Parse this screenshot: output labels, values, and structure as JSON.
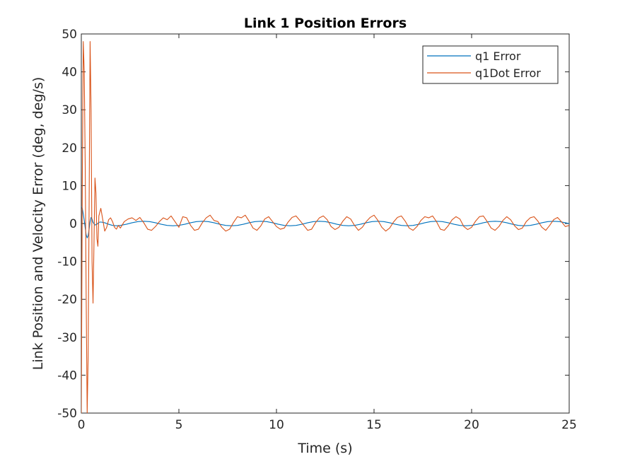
{
  "chart_data": {
    "type": "line",
    "title": "Link 1 Position Errors",
    "xlabel": "Time (s)",
    "ylabel": "Link Position and Velocity Error (deg, deg/s)",
    "xlim": [
      0,
      25
    ],
    "ylim": [
      -50,
      50
    ],
    "xticks": [
      0,
      5,
      10,
      15,
      20,
      25
    ],
    "yticks": [
      -50,
      -40,
      -30,
      -20,
      -10,
      0,
      10,
      20,
      30,
      40,
      50
    ],
    "grid": false,
    "legend_position": "top-right",
    "series": [
      {
        "name": "q1 Error",
        "color": "#0072BD",
        "x": [
          0,
          0.05,
          0.1,
          0.15,
          0.2,
          0.25,
          0.3,
          0.35,
          0.4,
          0.45,
          0.5,
          0.55,
          0.6,
          0.7,
          0.8,
          0.9,
          1.0,
          1.2,
          1.4,
          1.6,
          1.8,
          2.0,
          2.3,
          2.6,
          2.9,
          3.2,
          3.5,
          3.8,
          4.1,
          4.4,
          4.7,
          5.0,
          5.3,
          5.6,
          5.9,
          6.2,
          6.5,
          6.8,
          7.1,
          7.4,
          7.7,
          8.0,
          8.3,
          8.6,
          8.9,
          9.2,
          9.5,
          9.8,
          10.1,
          10.4,
          10.7,
          11.0,
          11.3,
          11.6,
          11.9,
          12.2,
          12.5,
          12.8,
          13.1,
          13.4,
          13.7,
          14.0,
          14.3,
          14.6,
          14.9,
          15.2,
          15.5,
          15.8,
          16.1,
          16.4,
          16.7,
          17.0,
          17.3,
          17.6,
          17.9,
          18.2,
          18.5,
          18.8,
          19.1,
          19.4,
          19.7,
          20.0,
          20.3,
          20.6,
          20.9,
          21.2,
          21.5,
          21.8,
          22.1,
          22.4,
          22.7,
          23.0,
          23.3,
          23.6,
          23.9,
          24.2,
          24.5,
          24.8,
          25.0
        ],
        "y": [
          4.5,
          4.0,
          2.5,
          0.8,
          -1.2,
          -3.0,
          -3.8,
          -3.2,
          -1.5,
          0.5,
          1.6,
          1.2,
          0.3,
          -0.4,
          -0.2,
          0.3,
          0.4,
          0.2,
          -0.2,
          -0.5,
          -0.6,
          -0.5,
          -0.2,
          0.2,
          0.5,
          0.6,
          0.5,
          0.2,
          -0.2,
          -0.5,
          -0.6,
          -0.5,
          -0.2,
          0.2,
          0.5,
          0.6,
          0.5,
          0.2,
          -0.2,
          -0.5,
          -0.6,
          -0.5,
          -0.2,
          0.2,
          0.5,
          0.6,
          0.5,
          0.2,
          -0.2,
          -0.5,
          -0.6,
          -0.5,
          -0.2,
          0.2,
          0.5,
          0.6,
          0.5,
          0.2,
          -0.2,
          -0.5,
          -0.6,
          -0.5,
          -0.2,
          0.2,
          0.5,
          0.6,
          0.5,
          0.2,
          -0.2,
          -0.5,
          -0.6,
          -0.5,
          -0.2,
          0.2,
          0.5,
          0.6,
          0.5,
          0.2,
          -0.2,
          -0.5,
          -0.6,
          -0.5,
          -0.2,
          0.2,
          0.5,
          0.6,
          0.5,
          0.2,
          -0.2,
          -0.5,
          -0.6,
          -0.5,
          -0.2,
          0.2,
          0.5,
          0.6,
          0.5,
          0.2,
          0.0
        ]
      },
      {
        "name": "q1Dot Error",
        "color": "#D95319",
        "x": [
          0,
          0.05,
          0.1,
          0.15,
          0.2,
          0.25,
          0.3,
          0.35,
          0.4,
          0.45,
          0.5,
          0.55,
          0.6,
          0.65,
          0.7,
          0.75,
          0.8,
          0.85,
          0.9,
          1.0,
          1.1,
          1.2,
          1.3,
          1.4,
          1.5,
          1.6,
          1.7,
          1.8,
          1.9,
          2.0,
          2.2,
          2.4,
          2.6,
          2.8,
          3.0,
          3.2,
          3.4,
          3.6,
          3.8,
          4.0,
          4.2,
          4.4,
          4.6,
          4.8,
          5.0,
          5.2,
          5.4,
          5.6,
          5.8,
          6.0,
          6.2,
          6.4,
          6.6,
          6.8,
          7.0,
          7.2,
          7.4,
          7.6,
          7.8,
          8.0,
          8.2,
          8.4,
          8.6,
          8.8,
          9.0,
          9.2,
          9.4,
          9.6,
          9.8,
          10.0,
          10.2,
          10.4,
          10.6,
          10.8,
          11.0,
          11.2,
          11.4,
          11.6,
          11.8,
          12.0,
          12.2,
          12.4,
          12.6,
          12.8,
          13.0,
          13.2,
          13.4,
          13.6,
          13.8,
          14.0,
          14.2,
          14.4,
          14.6,
          14.8,
          15.0,
          15.2,
          15.4,
          15.6,
          15.8,
          16.0,
          16.2,
          16.4,
          16.6,
          16.8,
          17.0,
          17.2,
          17.4,
          17.6,
          17.8,
          18.0,
          18.2,
          18.4,
          18.6,
          18.8,
          19.0,
          19.2,
          19.4,
          19.6,
          19.8,
          20.0,
          20.2,
          20.4,
          20.6,
          20.8,
          21.0,
          21.2,
          21.4,
          21.6,
          21.8,
          22.0,
          22.2,
          22.4,
          22.6,
          22.8,
          23.0,
          23.2,
          23.4,
          23.6,
          23.8,
          24.0,
          24.2,
          24.4,
          24.6,
          24.8,
          25.0
        ],
        "y": [
          -50,
          10,
          48,
          40,
          15,
          -20,
          -50,
          -35,
          5,
          48,
          30,
          -10,
          -21,
          -5,
          12,
          8,
          -4,
          -6,
          2,
          4,
          1,
          -2,
          -1,
          1,
          1.5,
          0.5,
          -1,
          -1.5,
          -0.5,
          -1.2,
          0.5,
          1.2,
          1.5,
          0.8,
          1.6,
          0.2,
          -1.5,
          -1.8,
          -0.8,
          0.5,
          1.5,
          1.0,
          2.0,
          0.5,
          -1.0,
          1.8,
          1.5,
          -0.5,
          -1.8,
          -1.5,
          0.2,
          1.5,
          2.2,
          0.8,
          0.5,
          -1.0,
          -2.0,
          -1.5,
          0.3,
          1.8,
          1.5,
          2.2,
          0.6,
          -1.2,
          -1.8,
          -0.6,
          1.2,
          1.8,
          0.5,
          -0.8,
          -1.5,
          -1.2,
          0.4,
          1.6,
          2.0,
          0.8,
          -0.5,
          -1.8,
          -1.5,
          0.2,
          1.5,
          2.0,
          1.0,
          -0.8,
          -1.6,
          -1.0,
          0.6,
          1.8,
          1.2,
          -0.5,
          -1.8,
          -1.0,
          0.5,
          1.6,
          2.2,
          0.8,
          -1.0,
          -2.0,
          -1.2,
          0.4,
          1.6,
          2.0,
          0.6,
          -1.2,
          -1.8,
          -0.8,
          0.8,
          1.8,
          1.5,
          2.0,
          0.5,
          -1.5,
          -1.8,
          -0.6,
          1.0,
          1.8,
          1.2,
          -0.8,
          -1.6,
          -1.0,
          0.6,
          1.8,
          2.0,
          0.5,
          -1.2,
          -1.8,
          -0.8,
          0.8,
          1.8,
          1.0,
          -0.6,
          -1.6,
          -1.2,
          0.5,
          1.5,
          1.8,
          0.6,
          -1.0,
          -1.8,
          -0.5,
          1.0,
          1.6,
          0.5,
          -0.8,
          -0.5
        ]
      }
    ]
  }
}
